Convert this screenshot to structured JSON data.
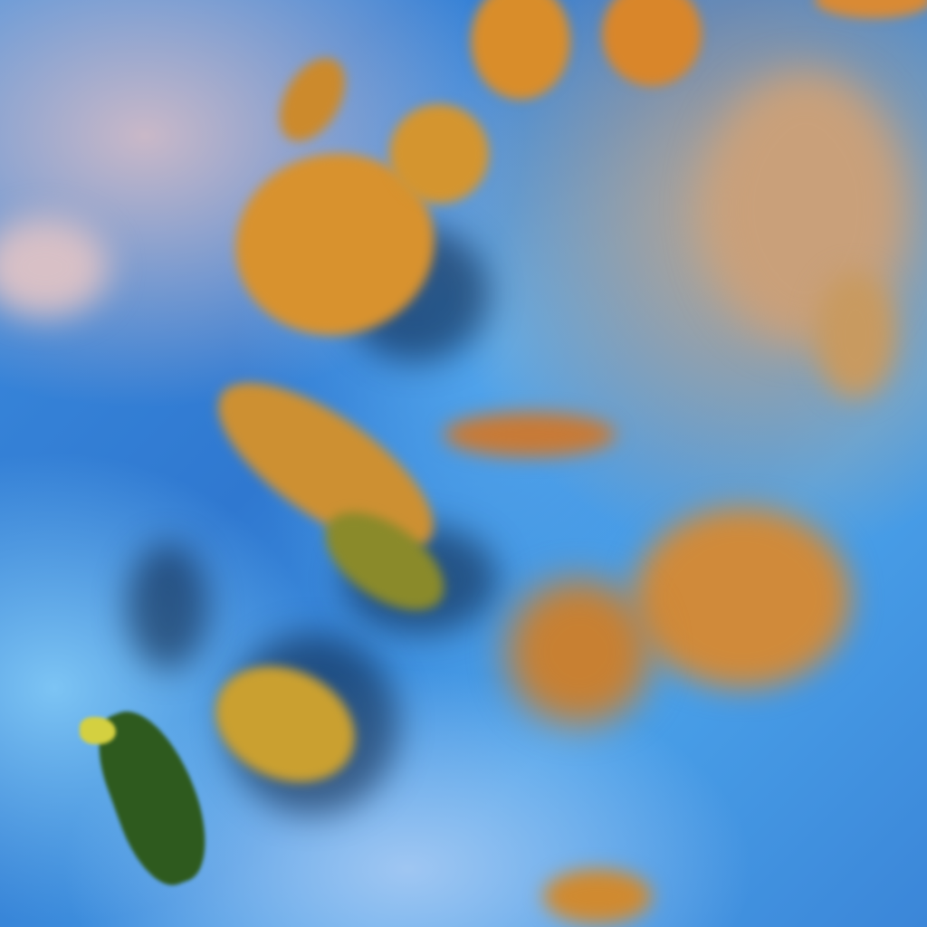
{
  "image": {
    "kind": "false-color satellite cloud imagery",
    "palette": {
      "ocean_clear": "#3d8ee0",
      "low_cloud": "#9fc6f2",
      "high_ice_cloud": "#d9902e",
      "thin_cirrus": "#c9b8c8",
      "shadow": "#0a1e3c",
      "land_vegetation": "#2e5a1e"
    }
  }
}
